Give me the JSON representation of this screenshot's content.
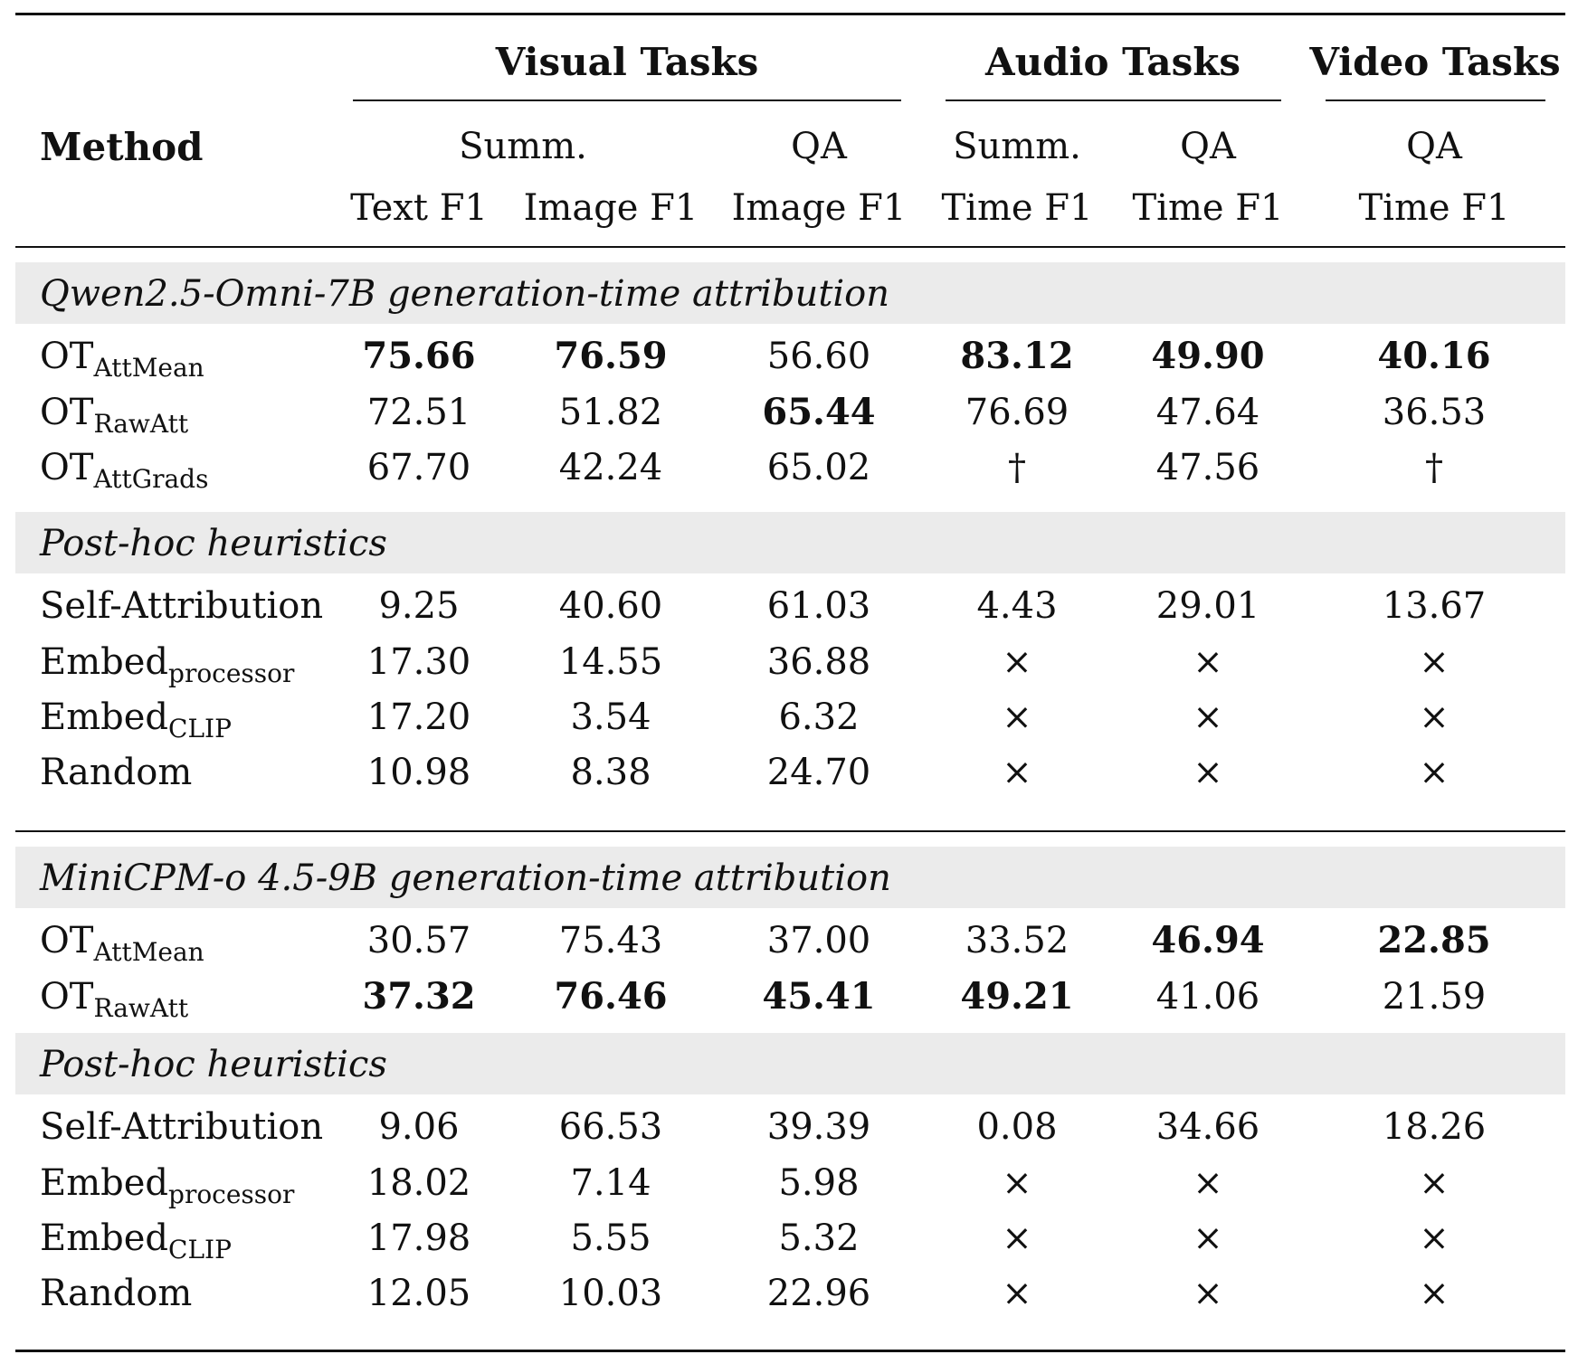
{
  "table": {
    "method_header": "Method",
    "groups": [
      {
        "label": "Visual Tasks"
      },
      {
        "label": "Audio Tasks"
      },
      {
        "label": "Video Tasks"
      }
    ],
    "tasks": [
      "Summ.",
      "QA",
      "Summ.",
      "QA",
      "QA"
    ],
    "metrics": [
      "Text F1",
      "Image F1",
      "Image F1",
      "Time F1",
      "Time F1",
      "Time F1"
    ],
    "sections": [
      {
        "title": "Qwen2.5-Omni-7B generation-time attribution",
        "rows": [
          {
            "base": "OT",
            "sub": "AttMean",
            "cells": [
              {
                "v": "75.66",
                "bold": true
              },
              {
                "v": "76.59",
                "bold": true
              },
              {
                "v": "56.60",
                "bold": false
              },
              {
                "v": "83.12",
                "bold": true
              },
              {
                "v": "49.90",
                "bold": true
              },
              {
                "v": "40.16",
                "bold": true
              }
            ]
          },
          {
            "base": "OT",
            "sub": "RawAtt",
            "cells": [
              {
                "v": "72.51",
                "bold": false
              },
              {
                "v": "51.82",
                "bold": false
              },
              {
                "v": "65.44",
                "bold": true
              },
              {
                "v": "76.69",
                "bold": false
              },
              {
                "v": "47.64",
                "bold": false
              },
              {
                "v": "36.53",
                "bold": false
              }
            ]
          },
          {
            "base": "OT",
            "sub": "AttGrads",
            "cells": [
              {
                "v": "67.70",
                "bold": false
              },
              {
                "v": "42.24",
                "bold": false
              },
              {
                "v": "65.02",
                "bold": false
              },
              {
                "v": "†",
                "bold": false
              },
              {
                "v": "47.56",
                "bold": false
              },
              {
                "v": "†",
                "bold": false
              }
            ]
          }
        ]
      },
      {
        "title": "Post-hoc heuristics",
        "rows": [
          {
            "base": "Self-Attribution",
            "sub": "",
            "cells": [
              {
                "v": "9.25",
                "bold": false
              },
              {
                "v": "40.60",
                "bold": false
              },
              {
                "v": "61.03",
                "bold": false
              },
              {
                "v": "4.43",
                "bold": false
              },
              {
                "v": "29.01",
                "bold": false
              },
              {
                "v": "13.67",
                "bold": false
              }
            ]
          },
          {
            "base": "Embed",
            "sub": "processor",
            "cells": [
              {
                "v": "17.30",
                "bold": false
              },
              {
                "v": "14.55",
                "bold": false
              },
              {
                "v": "36.88",
                "bold": false
              },
              {
                "v": "×",
                "bold": false
              },
              {
                "v": "×",
                "bold": false
              },
              {
                "v": "×",
                "bold": false
              }
            ]
          },
          {
            "base": "Embed",
            "sub": "CLIP",
            "cells": [
              {
                "v": "17.20",
                "bold": false
              },
              {
                "v": "3.54",
                "bold": false
              },
              {
                "v": "6.32",
                "bold": false
              },
              {
                "v": "×",
                "bold": false
              },
              {
                "v": "×",
                "bold": false
              },
              {
                "v": "×",
                "bold": false
              }
            ]
          },
          {
            "base": "Random",
            "sub": "",
            "cells": [
              {
                "v": "10.98",
                "bold": false
              },
              {
                "v": "8.38",
                "bold": false
              },
              {
                "v": "24.70",
                "bold": false
              },
              {
                "v": "×",
                "bold": false
              },
              {
                "v": "×",
                "bold": false
              },
              {
                "v": "×",
                "bold": false
              }
            ]
          }
        ]
      },
      {
        "title": "MiniCPM-o 4.5-9B generation-time attribution",
        "rows": [
          {
            "base": "OT",
            "sub": "AttMean",
            "cells": [
              {
                "v": "30.57",
                "bold": false
              },
              {
                "v": "75.43",
                "bold": false
              },
              {
                "v": "37.00",
                "bold": false
              },
              {
                "v": "33.52",
                "bold": false
              },
              {
                "v": "46.94",
                "bold": true
              },
              {
                "v": "22.85",
                "bold": true
              }
            ]
          },
          {
            "base": "OT",
            "sub": "RawAtt",
            "cells": [
              {
                "v": "37.32",
                "bold": true
              },
              {
                "v": "76.46",
                "bold": true
              },
              {
                "v": "45.41",
                "bold": true
              },
              {
                "v": "49.21",
                "bold": true
              },
              {
                "v": "41.06",
                "bold": false
              },
              {
                "v": "21.59",
                "bold": false
              }
            ]
          }
        ]
      },
      {
        "title": "Post-hoc heuristics",
        "rows": [
          {
            "base": "Self-Attribution",
            "sub": "",
            "cells": [
              {
                "v": "9.06",
                "bold": false
              },
              {
                "v": "66.53",
                "bold": false
              },
              {
                "v": "39.39",
                "bold": false
              },
              {
                "v": "0.08",
                "bold": false
              },
              {
                "v": "34.66",
                "bold": false
              },
              {
                "v": "18.26",
                "bold": false
              }
            ]
          },
          {
            "base": "Embed",
            "sub": "processor",
            "cells": [
              {
                "v": "18.02",
                "bold": false
              },
              {
                "v": "7.14",
                "bold": false
              },
              {
                "v": "5.98",
                "bold": false
              },
              {
                "v": "×",
                "bold": false
              },
              {
                "v": "×",
                "bold": false
              },
              {
                "v": "×",
                "bold": false
              }
            ]
          },
          {
            "base": "Embed",
            "sub": "CLIP",
            "cells": [
              {
                "v": "17.98",
                "bold": false
              },
              {
                "v": "5.55",
                "bold": false
              },
              {
                "v": "5.32",
                "bold": false
              },
              {
                "v": "×",
                "bold": false
              },
              {
                "v": "×",
                "bold": false
              },
              {
                "v": "×",
                "bold": false
              }
            ]
          },
          {
            "base": "Random",
            "sub": "",
            "cells": [
              {
                "v": "12.05",
                "bold": false
              },
              {
                "v": "10.03",
                "bold": false
              },
              {
                "v": "22.96",
                "bold": false
              },
              {
                "v": "×",
                "bold": false
              },
              {
                "v": "×",
                "bold": false
              },
              {
                "v": "×",
                "bold": false
              }
            ]
          }
        ]
      }
    ]
  }
}
